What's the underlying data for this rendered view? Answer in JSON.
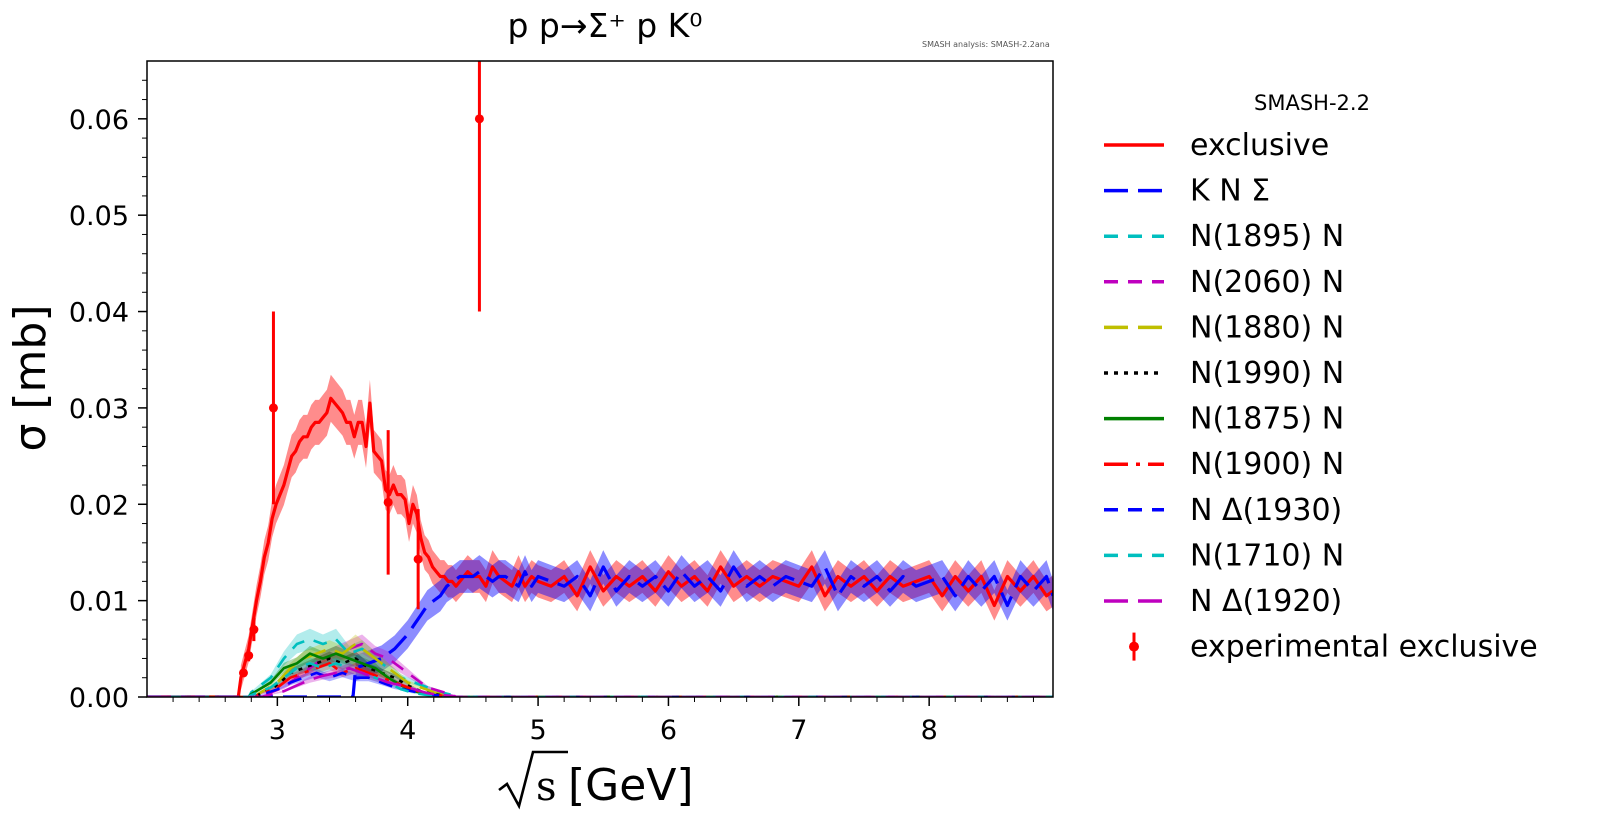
{
  "chart_data": {
    "type": "line",
    "title": "p p→Σ⁺ p K⁰",
    "watermark": "SMASH analysis: SMASH-2.2ana",
    "xlabel_radicand": "s",
    "xlabel_unit": "[GeV]",
    "ylabel": "σ [mb]",
    "xlim": [
      2.0,
      8.95
    ],
    "ylim": [
      0.0,
      0.066
    ],
    "xticks": [
      3,
      4,
      5,
      6,
      7,
      8
    ],
    "xtick_labels": [
      "3",
      "4",
      "5",
      "6",
      "7",
      "8"
    ],
    "yticks": [
      0.0,
      0.01,
      0.02,
      0.03,
      0.04,
      0.05,
      0.06
    ],
    "ytick_labels": [
      "0.00",
      "0.01",
      "0.02",
      "0.03",
      "0.04",
      "0.05",
      "0.06"
    ],
    "legend_title": "SMASH-2.2",
    "legend_position": "outside-right",
    "series": [
      {
        "name": "exclusive",
        "color": "#ff0000",
        "dash": "solid",
        "band": true,
        "x": [
          2.72,
          2.75,
          2.78,
          2.81,
          2.84,
          2.87,
          2.9,
          2.93,
          2.96,
          2.99,
          3.02,
          3.05,
          3.08,
          3.11,
          3.14,
          3.17,
          3.2,
          3.23,
          3.26,
          3.29,
          3.32,
          3.35,
          3.38,
          3.41,
          3.44,
          3.47,
          3.5,
          3.53,
          3.56,
          3.59,
          3.62,
          3.65,
          3.68,
          3.71,
          3.74,
          3.77,
          3.8,
          3.83,
          3.86,
          3.89,
          3.92,
          3.95,
          3.98,
          4.01,
          4.04,
          4.07,
          4.1,
          4.13,
          4.16,
          4.19,
          4.22,
          4.25,
          4.28,
          4.31,
          4.34,
          4.37,
          4.4,
          4.43,
          4.46,
          4.5,
          4.55,
          4.6,
          4.65,
          4.7,
          4.75,
          4.8,
          4.85,
          4.9,
          4.95,
          5.0,
          5.1,
          5.2,
          5.3,
          5.4,
          5.5,
          5.6,
          5.7,
          5.8,
          5.9,
          6.0,
          6.1,
          6.2,
          6.3,
          6.4,
          6.5,
          6.6,
          6.7,
          6.8,
          6.9,
          7.0,
          7.1,
          7.2,
          7.3,
          7.4,
          7.5,
          7.6,
          7.7,
          7.8,
          7.9,
          8.0,
          8.1,
          8.2,
          8.3,
          8.4,
          8.5,
          8.6,
          8.7,
          8.8,
          8.9,
          8.95
        ],
        "y": [
          0.002,
          0.0035,
          0.005,
          0.0075,
          0.01,
          0.012,
          0.0145,
          0.016,
          0.0185,
          0.02,
          0.021,
          0.022,
          0.0235,
          0.025,
          0.0255,
          0.0265,
          0.027,
          0.027,
          0.028,
          0.0285,
          0.0285,
          0.029,
          0.0295,
          0.031,
          0.0305,
          0.03,
          0.0295,
          0.0285,
          0.0285,
          0.027,
          0.0285,
          0.0285,
          0.026,
          0.0305,
          0.0255,
          0.025,
          0.0245,
          0.0215,
          0.021,
          0.022,
          0.021,
          0.021,
          0.0205,
          0.018,
          0.02,
          0.019,
          0.0165,
          0.015,
          0.0145,
          0.0135,
          0.013,
          0.0125,
          0.0125,
          0.012,
          0.012,
          0.0115,
          0.012,
          0.0125,
          0.013,
          0.0125,
          0.0125,
          0.0115,
          0.0135,
          0.0125,
          0.012,
          0.0115,
          0.013,
          0.0115,
          0.0125,
          0.012,
          0.0115,
          0.0125,
          0.0105,
          0.0135,
          0.011,
          0.0125,
          0.0115,
          0.0125,
          0.011,
          0.013,
          0.0115,
          0.0125,
          0.011,
          0.0135,
          0.0115,
          0.0125,
          0.0115,
          0.0125,
          0.012,
          0.0115,
          0.0135,
          0.0105,
          0.0125,
          0.0115,
          0.0125,
          0.011,
          0.0125,
          0.0115,
          0.012,
          0.0125,
          0.0105,
          0.0125,
          0.011,
          0.0125,
          0.0095,
          0.0125,
          0.011,
          0.0125,
          0.0105,
          0.011
        ]
      },
      {
        "name": "K N Σ",
        "color": "#0000ff",
        "dash": "long-dash",
        "band": true,
        "x": [
          3.6,
          3.7,
          3.8,
          3.9,
          4.0,
          4.05,
          4.1,
          4.15,
          4.2,
          4.25,
          4.3,
          4.35,
          4.4,
          4.45,
          4.5,
          4.55,
          4.6,
          4.65,
          4.7,
          4.75,
          4.8,
          4.85,
          4.9,
          4.95,
          5.0,
          5.1,
          5.2,
          5.3,
          5.4,
          5.5,
          5.6,
          5.7,
          5.8,
          5.9,
          6.0,
          6.1,
          6.2,
          6.3,
          6.4,
          6.5,
          6.6,
          6.7,
          6.8,
          6.9,
          7.0,
          7.1,
          7.2,
          7.3,
          7.4,
          7.5,
          7.6,
          7.7,
          7.8,
          7.9,
          8.0,
          8.1,
          8.2,
          8.3,
          8.4,
          8.5,
          8.6,
          8.7,
          8.8,
          8.9,
          8.95
        ],
        "y": [
          0.003,
          0.0035,
          0.004,
          0.005,
          0.0065,
          0.0075,
          0.0085,
          0.0095,
          0.01,
          0.0105,
          0.0115,
          0.012,
          0.0125,
          0.0125,
          0.0125,
          0.013,
          0.0125,
          0.012,
          0.0125,
          0.0125,
          0.012,
          0.0115,
          0.013,
          0.0115,
          0.0125,
          0.012,
          0.0115,
          0.0125,
          0.0105,
          0.0135,
          0.011,
          0.0125,
          0.0115,
          0.0125,
          0.011,
          0.013,
          0.0115,
          0.0125,
          0.011,
          0.0135,
          0.0115,
          0.0125,
          0.0115,
          0.0125,
          0.012,
          0.0115,
          0.0135,
          0.0105,
          0.0125,
          0.0115,
          0.0125,
          0.011,
          0.0125,
          0.0115,
          0.012,
          0.0125,
          0.0105,
          0.0125,
          0.011,
          0.0125,
          0.0095,
          0.0125,
          0.011,
          0.0125,
          0.0105
        ]
      },
      {
        "name": "N(1895) N",
        "color": "#00bfbf",
        "dash": "dash",
        "x": [
          2.8,
          2.95,
          3.05,
          3.15,
          3.25,
          3.35,
          3.45,
          3.55,
          3.65,
          3.75,
          3.85,
          3.95,
          4.05,
          4.15,
          4.25,
          4.35
        ],
        "y": [
          0.0005,
          0.002,
          0.004,
          0.0055,
          0.006,
          0.0055,
          0.006,
          0.0045,
          0.005,
          0.004,
          0.003,
          0.002,
          0.0015,
          0.001,
          0.0005,
          0.0002
        ]
      },
      {
        "name": "N(2060) N",
        "color": "#bf00bf",
        "dash": "dash",
        "x": [
          2.9,
          3.05,
          3.15,
          3.25,
          3.35,
          3.45,
          3.55,
          3.65,
          3.75,
          3.85,
          3.95,
          4.05,
          4.15,
          4.25,
          4.35
        ],
        "y": [
          0.0002,
          0.001,
          0.002,
          0.003,
          0.004,
          0.0045,
          0.005,
          0.0055,
          0.0045,
          0.004,
          0.003,
          0.002,
          0.001,
          0.0006,
          0.0002
        ]
      },
      {
        "name": "N(1880) N",
        "color": "#bfbf00",
        "dash": "long-dash",
        "x": [
          2.85,
          3.0,
          3.1,
          3.2,
          3.3,
          3.4,
          3.5,
          3.6,
          3.7,
          3.8,
          3.9,
          4.0,
          4.1,
          4.2,
          4.3
        ],
        "y": [
          0.0003,
          0.0015,
          0.003,
          0.004,
          0.0045,
          0.005,
          0.0045,
          0.0055,
          0.0045,
          0.0035,
          0.0025,
          0.0015,
          0.001,
          0.0005,
          0.0001
        ]
      },
      {
        "name": "N(1990) N",
        "color": "#000000",
        "dash": "dot",
        "x": [
          2.85,
          3.0,
          3.1,
          3.2,
          3.3,
          3.4,
          3.5,
          3.6,
          3.7,
          3.8,
          3.9,
          4.0,
          4.1,
          4.2,
          4.3
        ],
        "y": [
          0.0002,
          0.0012,
          0.0025,
          0.003,
          0.0035,
          0.004,
          0.0035,
          0.004,
          0.003,
          0.0025,
          0.002,
          0.0012,
          0.0006,
          0.0003,
          0.0001
        ]
      },
      {
        "name": "N(1875) N",
        "color": "#008000",
        "dash": "solid",
        "x": [
          2.8,
          2.95,
          3.05,
          3.15,
          3.25,
          3.35,
          3.45,
          3.55,
          3.65,
          3.75,
          3.85,
          3.95,
          4.05,
          4.15,
          4.25
        ],
        "y": [
          0.0003,
          0.0015,
          0.003,
          0.0035,
          0.0045,
          0.004,
          0.0045,
          0.004,
          0.0035,
          0.003,
          0.002,
          0.0012,
          0.0006,
          0.0003,
          0.0001
        ]
      },
      {
        "name": "N(1900) N",
        "color": "#ff0000",
        "dash": "long-short",
        "x": [
          2.85,
          3.0,
          3.1,
          3.2,
          3.3,
          3.4,
          3.5,
          3.6,
          3.7,
          3.8,
          3.9,
          4.0,
          4.1,
          4.2,
          4.3
        ],
        "y": [
          0.0002,
          0.001,
          0.002,
          0.0025,
          0.003,
          0.0035,
          0.0025,
          0.003,
          0.0025,
          0.002,
          0.0015,
          0.001,
          0.0005,
          0.0002,
          0.0001
        ]
      },
      {
        "name": "N Δ(1930)",
        "color": "#0000ff",
        "dash": "dash",
        "x": [
          2.85,
          3.0,
          3.1,
          3.2,
          3.3,
          3.4,
          3.5,
          3.6,
          3.7,
          3.8,
          3.9,
          4.0,
          4.1,
          4.2,
          4.3
        ],
        "y": [
          0.0001,
          0.0008,
          0.0015,
          0.002,
          0.0025,
          0.002,
          0.0025,
          0.002,
          0.002,
          0.0015,
          0.001,
          0.0007,
          0.0004,
          0.0002,
          0.0001
        ]
      },
      {
        "name": "N(1710) N",
        "color": "#00bfbf",
        "dash": "dash",
        "x": [
          2.8,
          2.95,
          3.05,
          3.15,
          3.25,
          3.35,
          3.45,
          3.55,
          3.65,
          3.75,
          3.85,
          3.95,
          4.05,
          4.15,
          4.25
        ],
        "y": [
          0.0002,
          0.001,
          0.002,
          0.003,
          0.0035,
          0.003,
          0.0035,
          0.003,
          0.0025,
          0.002,
          0.0015,
          0.0008,
          0.0004,
          0.0002,
          0.0001
        ]
      },
      {
        "name": "N Δ(1920)",
        "color": "#bf00bf",
        "dash": "long-dash",
        "x": [
          2.9,
          3.05,
          3.15,
          3.25,
          3.35,
          3.45,
          3.55,
          3.65,
          3.75,
          3.85,
          3.95,
          4.05,
          4.15,
          4.25,
          4.35
        ],
        "y": [
          0.0001,
          0.0006,
          0.0012,
          0.0018,
          0.0022,
          0.0025,
          0.003,
          0.0025,
          0.002,
          0.0015,
          0.0012,
          0.0008,
          0.0004,
          0.0002,
          0.0001
        ]
      }
    ],
    "experimental": {
      "name": "experimental exclusive",
      "color": "#ff0000",
      "points": [
        {
          "x": 2.74,
          "y": 0.0025,
          "err": 0.0004
        },
        {
          "x": 2.78,
          "y": 0.0043,
          "err": 0.0006
        },
        {
          "x": 2.82,
          "y": 0.007,
          "err": 0.0012
        },
        {
          "x": 2.97,
          "y": 0.03,
          "err": 0.01
        },
        {
          "x": 3.85,
          "y": 0.0202,
          "err": 0.0075
        },
        {
          "x": 4.08,
          "y": 0.0143,
          "err": 0.0052
        },
        {
          "x": 4.55,
          "y": 0.06,
          "err": 0.02
        }
      ]
    }
  }
}
